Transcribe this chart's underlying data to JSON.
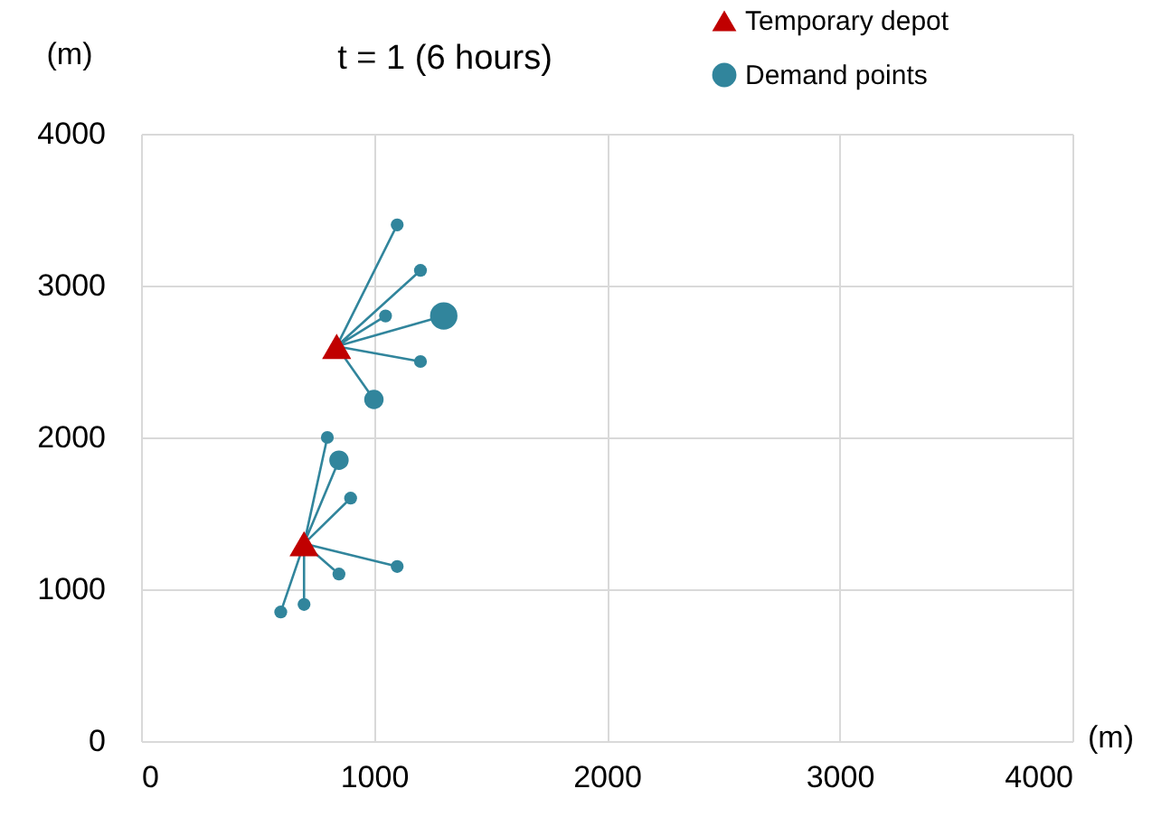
{
  "chart_data": {
    "type": "bubble",
    "title": "t = 1 (6 hours)",
    "xlabel": "(m)",
    "ylabel": "(m)",
    "xlim": [
      0,
      4000
    ],
    "xticks": [
      0,
      1000,
      2000,
      3000,
      4000
    ],
    "ylim": [
      0,
      4000
    ],
    "yticks": [
      0,
      1000,
      2000,
      3000,
      4000
    ],
    "grid": true,
    "legend": "top right",
    "series": [
      {
        "type": "line",
        "color": "#31859c",
        "x": [
          840,
          1100,
          840,
          1200,
          840,
          1050,
          840,
          1300,
          840,
          1200,
          840,
          1000
        ],
        "values": [
          2600,
          3400,
          2600,
          3100,
          2600,
          2800,
          2600,
          2800,
          2600,
          2500,
          2600,
          2250
        ]
      },
      {
        "type": "line",
        "color": "#31859c",
        "x": [
          700,
          800,
          700,
          850,
          700,
          900,
          700,
          1100,
          700,
          850,
          700,
          700,
          700,
          600
        ],
        "values": [
          1300,
          2000,
          1300,
          1850,
          1300,
          1600,
          1300,
          1150,
          1300,
          1100,
          1300,
          900,
          1300,
          850
        ]
      },
      {
        "name": "Temporary depot",
        "type": "scatter",
        "marker": "triangle",
        "color": "#c00000",
        "x": [
          840,
          700
        ],
        "values": [
          2600,
          1300
        ]
      },
      {
        "name": "Demand points",
        "type": "bubble",
        "marker": "circle",
        "color": "#31859c",
        "x": [
          1100,
          1200,
          1050,
          1300,
          1200,
          1000,
          800,
          850,
          900,
          1100,
          850,
          700,
          600
        ],
        "values": [
          3400,
          3100,
          2800,
          2800,
          2500,
          2250,
          2000,
          1850,
          1600,
          1150,
          1100,
          900,
          850
        ],
        "sizes": [
          0.22,
          0.22,
          0.22,
          1,
          0.22,
          0.5,
          0.22,
          0.5,
          0.22,
          0.22,
          0.22,
          0.22,
          0.22
        ]
      }
    ]
  }
}
